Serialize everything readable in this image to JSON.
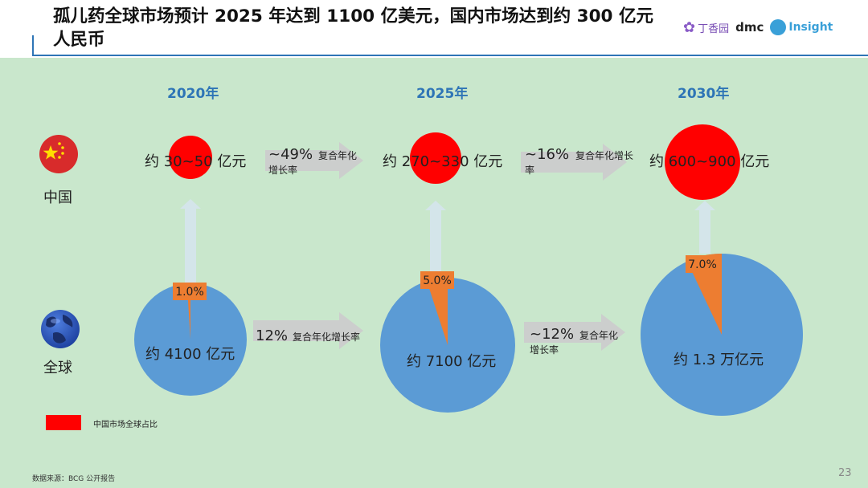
{
  "header": {
    "title": "孤儿药全球市场预计 2025 年达到 1100 亿美元，国内市场达到约 300 亿元人民币"
  },
  "logos": {
    "dingxiangyuan": "丁香园",
    "dmc": "dmc",
    "insight": "Insight"
  },
  "row_labels": {
    "china": "中国",
    "global": "全球"
  },
  "chart_data": {
    "type": "pie",
    "years": [
      "2020年",
      "2025年",
      "2030年"
    ],
    "china_market": [
      "约 30~50 亿元",
      "约 270~330 亿元",
      "约 600~900 亿元"
    ],
    "global_market": [
      "约 4100 亿元",
      "约 7100 亿元",
      "约 1.3 万亿元"
    ],
    "china_share_percent": [
      1.0,
      5.0,
      7.0
    ],
    "china_share_labels": [
      "1.0%",
      "5.0%",
      "7.0%"
    ],
    "china_growth": [
      {
        "value": "~49%",
        "label": "复合年化增长率"
      },
      {
        "value": "~16%",
        "label": "复合年化增长率"
      }
    ],
    "global_growth": [
      {
        "value": "12%",
        "label": "复合年化增长率"
      },
      {
        "value": "~12%",
        "label": "复合年化增长率"
      }
    ],
    "legend": "中国市场全球占比",
    "colors": {
      "global": "#5b9bd5",
      "china_share": "#ed7d31",
      "china_market": "#ff0000",
      "arrow": "#cccccc",
      "year": "#2e75b6"
    }
  },
  "footer": {
    "source": "数据来源：BCG 公开报告",
    "page": "23"
  }
}
